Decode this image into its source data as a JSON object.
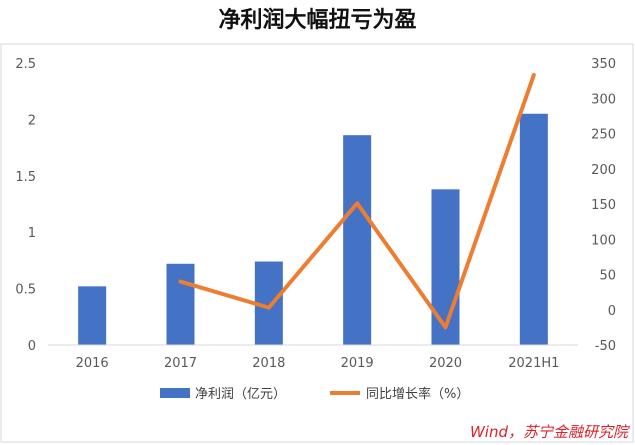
{
  "title": "净利润大幅扭亏为盈",
  "source": "Wind，苏宁金融研究院",
  "chart_data": {
    "type": "bar+line",
    "categories": [
      "2016",
      "2017",
      "2018",
      "2019",
      "2020",
      "2021H1"
    ],
    "series": [
      {
        "name": "净利润（亿元）",
        "type": "bar",
        "axis": "left",
        "values": [
          0.52,
          0.72,
          0.74,
          1.86,
          1.38,
          2.05
        ],
        "color": "#4472C4"
      },
      {
        "name": "同比增长率（%）",
        "type": "line",
        "axis": "right",
        "values": [
          null,
          40,
          3,
          151,
          -25,
          333
        ],
        "color": "#ED7D31"
      }
    ],
    "y_left": {
      "ylim": [
        0,
        2.5
      ],
      "ticks": [
        "0",
        "0.5",
        "1",
        "1.5",
        "2",
        "2.5"
      ]
    },
    "y_right": {
      "ylim": [
        -50,
        350
      ],
      "ticks": [
        "-50",
        "0",
        "50",
        "100",
        "150",
        "200",
        "250",
        "300",
        "350"
      ]
    },
    "legend_position": "bottom",
    "grid": false
  }
}
